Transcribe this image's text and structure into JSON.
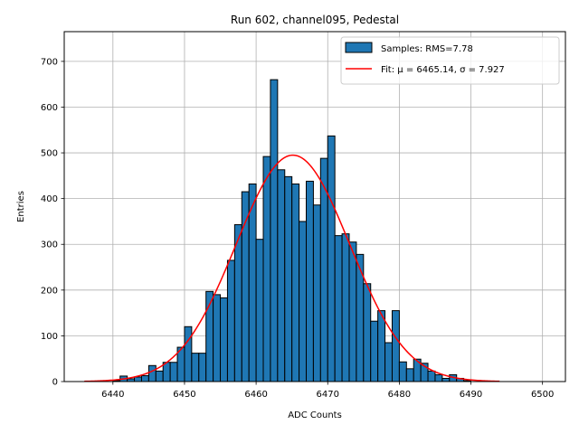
{
  "chart_data": {
    "type": "bar",
    "title": "Run 602, channel095, Pedestal",
    "xlabel": "ADC Counts",
    "ylabel": "Entries",
    "xlim": [
      6433.2,
      6503.2
    ],
    "ylim": [
      0,
      765
    ],
    "grid": true,
    "legend_placement": "top-right",
    "x_ticks": [
      6440,
      6450,
      6460,
      6470,
      6480,
      6490,
      6500
    ],
    "y_ticks": [
      0,
      100,
      200,
      300,
      400,
      500,
      600,
      700
    ],
    "histogram": {
      "name": "Samples: RMS=7.78",
      "color": "#1f77b4",
      "edge_color": "#000000",
      "bin_width": 1,
      "bin_left_edges": [
        6440,
        6441,
        6442,
        6443,
        6444,
        6445,
        6446,
        6447,
        6448,
        6449,
        6450,
        6451,
        6452,
        6453,
        6454,
        6455,
        6456,
        6457,
        6458,
        6459,
        6460,
        6461,
        6462,
        6463,
        6464,
        6465,
        6466,
        6467,
        6468,
        6469,
        6470,
        6471,
        6472,
        6473,
        6474,
        6475,
        6476,
        6477,
        6478,
        6479,
        6480,
        6481,
        6482,
        6483,
        6484,
        6485,
        6486,
        6487,
        6488,
        6489
      ],
      "counts": [
        2,
        12,
        6,
        10,
        13,
        35,
        23,
        42,
        42,
        75,
        120,
        62,
        62,
        197,
        190,
        183,
        265,
        343,
        415,
        432,
        311,
        492,
        660,
        463,
        448,
        432,
        350,
        438,
        386,
        488,
        537,
        319,
        323,
        305,
        278,
        214,
        132,
        155,
        85,
        155,
        43,
        28,
        49,
        40,
        23,
        15,
        7,
        15,
        7,
        2
      ]
    },
    "fit": {
      "name": "Fit: μ = 6465.14, σ = 7.927",
      "color": "#ff0000",
      "mu": 6465.14,
      "sigma": 7.927,
      "amplitude": 495,
      "x_range": [
        6436,
        6494
      ]
    }
  },
  "legend": {
    "hist_label": "Samples: RMS=7.78",
    "fit_label": "Fit: μ = 6465.14, σ = 7.927"
  }
}
